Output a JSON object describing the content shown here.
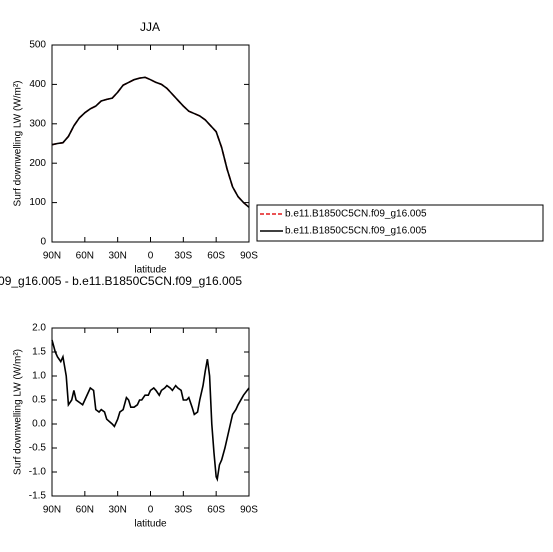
{
  "chart_data": [
    {
      "type": "line",
      "title": "JJA",
      "xlabel": "latitude",
      "ylabel": "Surf downwelling LW (W/m²)",
      "x": [
        90,
        85,
        80,
        75,
        70,
        65,
        60,
        55,
        50,
        45,
        40,
        35,
        30,
        25,
        20,
        15,
        10,
        5,
        0,
        -5,
        -10,
        -15,
        -20,
        -25,
        -30,
        -35,
        -40,
        -45,
        -50,
        -55,
        -60,
        -65,
        -70,
        -75,
        -80,
        -85,
        -90
      ],
      "series": [
        {
          "name": "b.e11.B1850C5CN.f09_g16.005",
          "color": "#e41a1c",
          "dashed": true,
          "values": [
            247,
            250,
            252,
            268,
            295,
            315,
            328,
            338,
            345,
            358,
            362,
            365,
            380,
            398,
            405,
            412,
            416,
            418,
            412,
            405,
            400,
            390,
            375,
            360,
            345,
            332,
            326,
            320,
            310,
            295,
            280,
            240,
            185,
            140,
            115,
            100,
            88
          ]
        },
        {
          "name": "b.e11.B1850C5CN.f09_g16.005",
          "color": "#000000",
          "dashed": false,
          "values": [
            247,
            250,
            252,
            268,
            295,
            315,
            328,
            338,
            345,
            358,
            362,
            365,
            380,
            398,
            405,
            412,
            416,
            418,
            412,
            405,
            400,
            390,
            375,
            360,
            345,
            332,
            326,
            320,
            310,
            295,
            280,
            240,
            185,
            140,
            115,
            100,
            88
          ]
        }
      ],
      "xlim": [
        90,
        -90
      ],
      "xticks": [
        {
          "value": 90,
          "label": "90N"
        },
        {
          "value": 60,
          "label": "60N"
        },
        {
          "value": 30,
          "label": "30N"
        },
        {
          "value": 0,
          "label": "0"
        },
        {
          "value": -30,
          "label": "30S"
        },
        {
          "value": -60,
          "label": "60S"
        },
        {
          "value": -90,
          "label": "90S"
        }
      ],
      "ylim": [
        0,
        500
      ],
      "yticks": [
        0,
        100,
        200,
        300,
        400,
        500
      ],
      "legend": "right"
    },
    {
      "type": "line",
      "title": "09_g16.005 - b.e11.B1850C5CN.f09_g16.005",
      "xlabel": "latitude",
      "ylabel": "Surf downwelling LW (W/m²)",
      "x": [
        90,
        87,
        85,
        82,
        80,
        77,
        75,
        72,
        70,
        68,
        65,
        62,
        60,
        55,
        52,
        50,
        47,
        45,
        42,
        40,
        35,
        33,
        30,
        28,
        25,
        22,
        20,
        18,
        15,
        12,
        10,
        8,
        5,
        2,
        0,
        -3,
        -5,
        -8,
        -10,
        -13,
        -15,
        -18,
        -20,
        -23,
        -25,
        -28,
        -30,
        -33,
        -35,
        -38,
        -40,
        -43,
        -45,
        -48,
        -50,
        -52,
        -54,
        -56,
        -58,
        -60,
        -61,
        -63,
        -65,
        -68,
        -70,
        -73,
        -75,
        -78,
        -80,
        -85,
        -90
      ],
      "series": [
        {
          "color": "#000000",
          "dashed": false,
          "values": [
            1.75,
            1.5,
            1.4,
            1.3,
            1.4,
            1.0,
            0.4,
            0.5,
            0.7,
            0.5,
            0.45,
            0.4,
            0.5,
            0.75,
            0.7,
            0.3,
            0.25,
            0.3,
            0.25,
            0.1,
            0.0,
            -0.05,
            0.1,
            0.25,
            0.3,
            0.55,
            0.5,
            0.35,
            0.35,
            0.4,
            0.5,
            0.5,
            0.6,
            0.6,
            0.7,
            0.75,
            0.7,
            0.6,
            0.7,
            0.75,
            0.8,
            0.75,
            0.7,
            0.8,
            0.75,
            0.7,
            0.5,
            0.5,
            0.55,
            0.35,
            0.2,
            0.25,
            0.5,
            0.8,
            1.1,
            1.35,
            1.0,
            0.0,
            -0.6,
            -1.1,
            -1.15,
            -0.85,
            -0.75,
            -0.5,
            -0.3,
            0.0,
            0.2,
            0.3,
            0.4,
            0.6,
            0.75
          ]
        }
      ],
      "xlim": [
        90,
        -90
      ],
      "xticks": [
        {
          "value": 90,
          "label": "90N"
        },
        {
          "value": 60,
          "label": "60N"
        },
        {
          "value": 30,
          "label": "30N"
        },
        {
          "value": 0,
          "label": "0"
        },
        {
          "value": -30,
          "label": "30S"
        },
        {
          "value": -60,
          "label": "60S"
        },
        {
          "value": -90,
          "label": "90S"
        }
      ],
      "ylim": [
        -1.5,
        2.0
      ],
      "yticks": [
        -1.5,
        {
          "value": -1.0,
          "label": "-1.0"
        },
        -0.5,
        {
          "value": 0,
          "label": "0.0"
        },
        0.5,
        {
          "value": 1.0,
          "label": "1.0"
        },
        1.5,
        {
          "value": 2.0,
          "label": "2.0"
        }
      ]
    }
  ]
}
